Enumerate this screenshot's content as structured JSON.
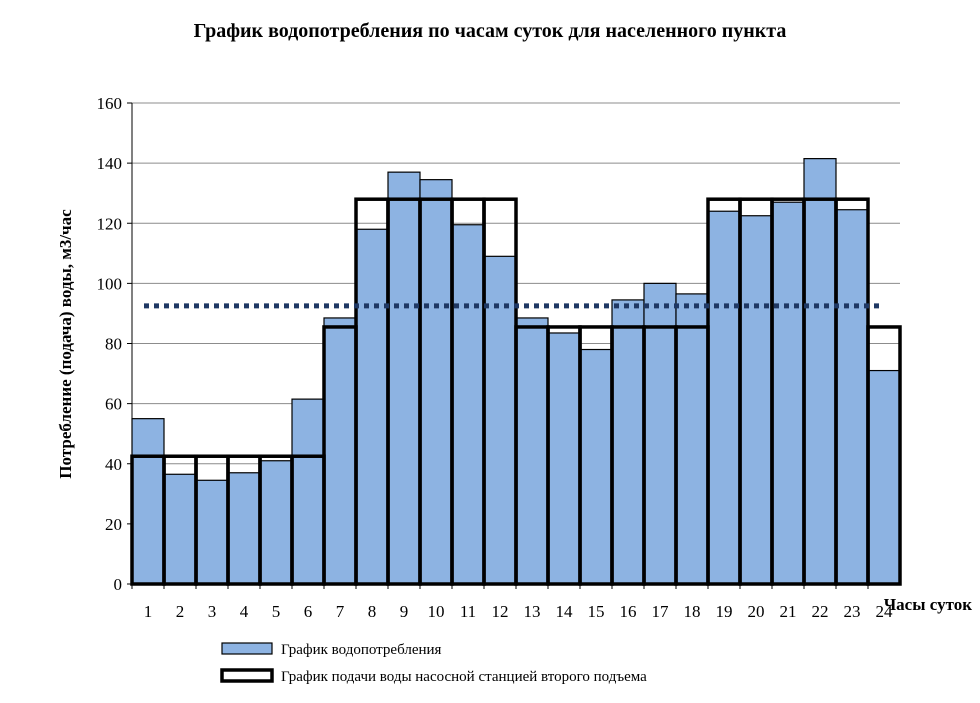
{
  "colors": {
    "consumption_fill": "#8DB3E2",
    "consumption_stroke": "#000000",
    "supply_stroke": "#000000",
    "average_line": "#1F3864",
    "grid": "#8C8C8C"
  },
  "chart_data": {
    "type": "bar",
    "title": "График водопотребления  по часам суток для населенного  пункта",
    "xlabel": "Часы суток",
    "ylabel": "Потребление (подача) воды, м3/час",
    "ylim": [
      0,
      160
    ],
    "yticks": [
      0,
      20,
      40,
      60,
      80,
      100,
      120,
      140,
      160
    ],
    "grid": true,
    "legend_position": "bottom",
    "categories": [
      "1",
      "2",
      "3",
      "4",
      "5",
      "6",
      "7",
      "8",
      "9",
      "10",
      "11",
      "12",
      "13",
      "14",
      "15",
      "16",
      "17",
      "18",
      "19",
      "20",
      "21",
      "22",
      "23",
      "24"
    ],
    "series": [
      {
        "name": "График водопотребления",
        "type": "bar",
        "values": [
          55,
          36.5,
          34.5,
          37,
          41,
          61.5,
          88.5,
          118,
          137,
          134.5,
          119.5,
          109,
          88.5,
          83.5,
          78,
          94.5,
          100,
          96.5,
          124,
          122.5,
          127,
          141.5,
          124.5,
          71
        ]
      },
      {
        "name": "График подачи воды насосной станцией второго подъема",
        "type": "step",
        "values": [
          42.5,
          42.5,
          42.5,
          42.5,
          42.5,
          42.5,
          85.5,
          128,
          128,
          128,
          128,
          128,
          85.5,
          85.5,
          85.5,
          85.5,
          85.5,
          85.5,
          128,
          128,
          128,
          128,
          128,
          85.5
        ]
      }
    ],
    "average_line": 92.5
  }
}
